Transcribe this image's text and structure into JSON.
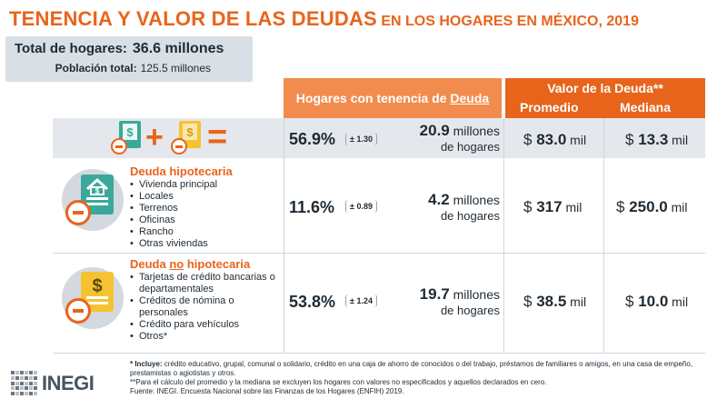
{
  "title": {
    "main": "TENENCIA Y VALOR DE LAS DEUDAS",
    "sub": " EN LOS HOGARES EN MÉXICO, 2019"
  },
  "totals": {
    "hogares_label": "Total de hogares:",
    "hogares_value": "36.6 millones",
    "poblacion_label": "Población total:",
    "poblacion_value": "125.5 millones"
  },
  "headers": {
    "tenencia_prefix": "Hogares con tenencia de ",
    "tenencia_underlined": "Deuda",
    "valor": "Valor de la Deuda**",
    "promedio": "Promedio",
    "mediana": "Mediana"
  },
  "icons": {
    "summary_plus": "+",
    "summary_equals": "="
  },
  "rows": [
    {
      "pct": "56.9%",
      "err": "± 1.30",
      "hogares_num": "20.9",
      "hogares_unit": " millones",
      "hogares_line2": "de hogares",
      "currency": "$",
      "promedio": "83.0",
      "mediana": "13.3",
      "mil": " mil"
    },
    {
      "title": "Deuda hipotecaria",
      "items": [
        "Vivienda principal",
        "Locales",
        "Terrenos",
        "Oficinas",
        "Rancho",
        "Otras viviendas"
      ],
      "pct": "11.6%",
      "err": "± 0.89",
      "hogares_num": "4.2",
      "hogares_unit": " millones",
      "hogares_line2": "de hogares",
      "currency": "$",
      "promedio": "317",
      "mediana": "250.0",
      "mil": " mil"
    },
    {
      "title_prefix": "Deuda ",
      "title_underlined": "no",
      "title_suffix": " hipotecaria",
      "items": [
        "Tarjetas de crédito bancarias o departamentales",
        "Créditos de nómina o personales",
        "Crédito para vehículos",
        "Otros*"
      ],
      "pct": "53.8%",
      "err": "± 1.24",
      "hogares_num": "19.7",
      "hogares_unit": " millones",
      "hogares_line2": "de hogares",
      "currency": "$",
      "promedio": "38.5",
      "mediana": "10.0",
      "mil": " mil"
    }
  ],
  "notes": {
    "n1_label": "* Incluye:",
    "n1_text": " crédito educativo, grupal, comunal o solidario, crédito en una caja de ahorro de conocidos o del trabajo, préstamos de familiares o amigos, en  una casa de empeño, prestamistas o agiotistas y otros.",
    "n2": "**Para el cálculo del promedio y la mediana se excluyen los hogares con valores no especificados y aquellos declarados en cero.",
    "n3": "Fuente: INEGI. Encuesta Nacional sobre las Finanzas de los Hogares (ENFIH) 2019."
  },
  "logo": {
    "word": "INEGI"
  },
  "colors": {
    "accent": "#e8641b",
    "accent_light": "#f28c4e",
    "band": "#e4e8ec",
    "icon_teal": "#3aa89a",
    "icon_yellow": "#f5c232"
  }
}
